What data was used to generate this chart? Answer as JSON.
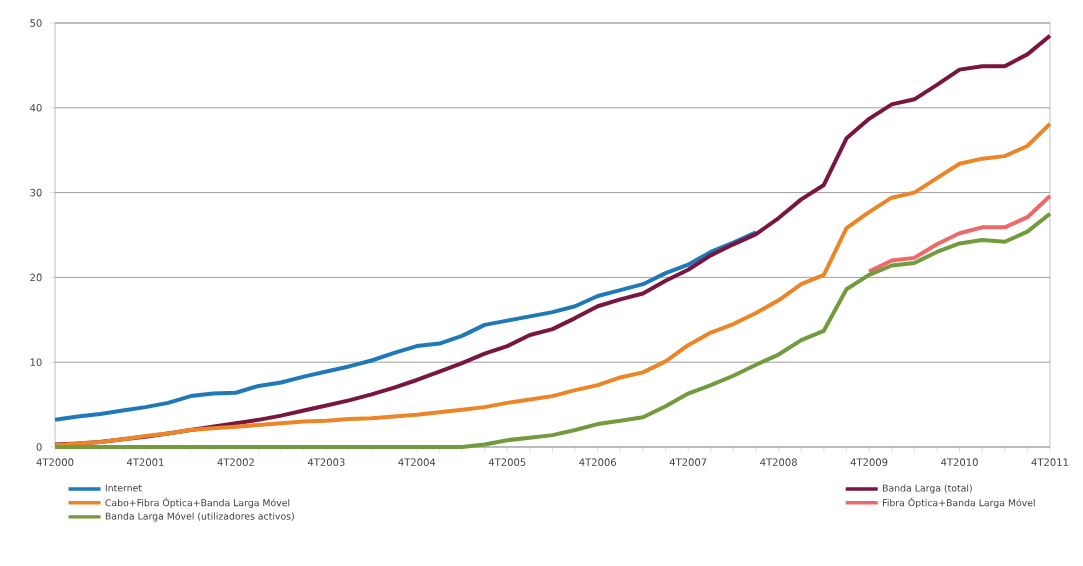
{
  "chart_data": {
    "type": "line",
    "categories": [
      "4T2000",
      null,
      null,
      null,
      "4T2001",
      null,
      null,
      null,
      "4T2002",
      null,
      null,
      null,
      "4T2003",
      null,
      null,
      null,
      "4T2004",
      null,
      null,
      null,
      "4T2005",
      null,
      null,
      null,
      "4T2006",
      null,
      null,
      null,
      "4T2007",
      null,
      null,
      null,
      "4T2008",
      null,
      null,
      null,
      "4T2009",
      null,
      null,
      null,
      "4T2010",
      null,
      null,
      null,
      "4T2011"
    ],
    "series": [
      {
        "name": "Internet",
        "color": "#1f78b8",
        "values": [
          3.2,
          3.6,
          3.9,
          4.3,
          4.7,
          5.2,
          6.0,
          6.3,
          6.4,
          7.2,
          7.6,
          8.3,
          8.9,
          9.5,
          10.2,
          11.1,
          11.9,
          12.2,
          13.1,
          14.4,
          14.9,
          15.4,
          15.9,
          16.6,
          17.8,
          18.5,
          19.2,
          20.5,
          21.5,
          23.0,
          24.1,
          25.3,
          null,
          null,
          null,
          null,
          null,
          null,
          null,
          null,
          null,
          null,
          null,
          null,
          null
        ]
      },
      {
        "name": "Banda Larga (total)",
        "color": "#7a1540",
        "values": [
          0.3,
          0.4,
          0.6,
          0.9,
          1.2,
          1.6,
          2.0,
          2.4,
          2.8,
          3.2,
          3.7,
          4.3,
          4.9,
          5.5,
          6.2,
          7.0,
          7.9,
          8.9,
          9.9,
          11.0,
          11.9,
          13.2,
          13.9,
          15.2,
          16.6,
          17.4,
          18.1,
          19.6,
          20.9,
          22.6,
          23.9,
          25.1,
          27.0,
          29.2,
          30.9,
          36.4,
          38.7,
          40.4,
          41.0,
          42.7,
          44.5,
          44.9,
          44.9,
          46.3,
          48.5
        ]
      },
      {
        "name": "Cabo+Fibra Óptica+Banda Larga Móvel",
        "color": "#ec8526",
        "values": [
          0.2,
          0.4,
          0.6,
          0.9,
          1.3,
          1.6,
          2.0,
          2.2,
          2.4,
          2.6,
          2.8,
          3.0,
          3.1,
          3.3,
          3.4,
          3.6,
          3.8,
          4.1,
          4.4,
          4.7,
          5.2,
          5.6,
          6.0,
          6.7,
          7.3,
          8.2,
          8.8,
          10.1,
          12.0,
          13.5,
          14.5,
          15.8,
          17.3,
          19.2,
          20.3,
          25.8,
          27.7,
          29.4,
          30.0,
          31.7,
          33.4,
          34.0,
          34.3,
          35.5,
          38.1
        ]
      },
      {
        "name": "Fibra Óptica+Banda Larga Móvel",
        "color": "#ee6868",
        "values": [
          null,
          null,
          null,
          null,
          null,
          null,
          null,
          null,
          null,
          null,
          null,
          null,
          null,
          null,
          null,
          null,
          null,
          null,
          null,
          null,
          null,
          null,
          null,
          null,
          null,
          null,
          null,
          null,
          null,
          null,
          null,
          null,
          null,
          null,
          null,
          null,
          20.7,
          22.0,
          22.3,
          23.9,
          25.2,
          25.9,
          25.9,
          27.1,
          29.6
        ]
      },
      {
        "name": "Banda Larga Móvel (utilizadores activos)",
        "color": "#739a3c",
        "values": [
          0,
          0,
          0,
          0,
          0,
          0,
          0,
          0,
          0,
          0,
          0,
          0,
          0,
          0,
          0,
          0,
          0,
          0,
          0,
          0.3,
          0.8,
          1.1,
          1.4,
          2.0,
          2.7,
          3.1,
          3.5,
          4.8,
          6.3,
          7.3,
          8.4,
          9.7,
          10.9,
          12.6,
          13.7,
          18.6,
          20.3,
          21.4,
          21.7,
          23.0,
          24.0,
          24.4,
          24.2,
          25.4,
          27.5
        ]
      }
    ],
    "ylim": [
      0,
      50
    ],
    "yticks": [
      0,
      10,
      20,
      30,
      40,
      50
    ],
    "grid": "y",
    "legend": "bottom"
  }
}
